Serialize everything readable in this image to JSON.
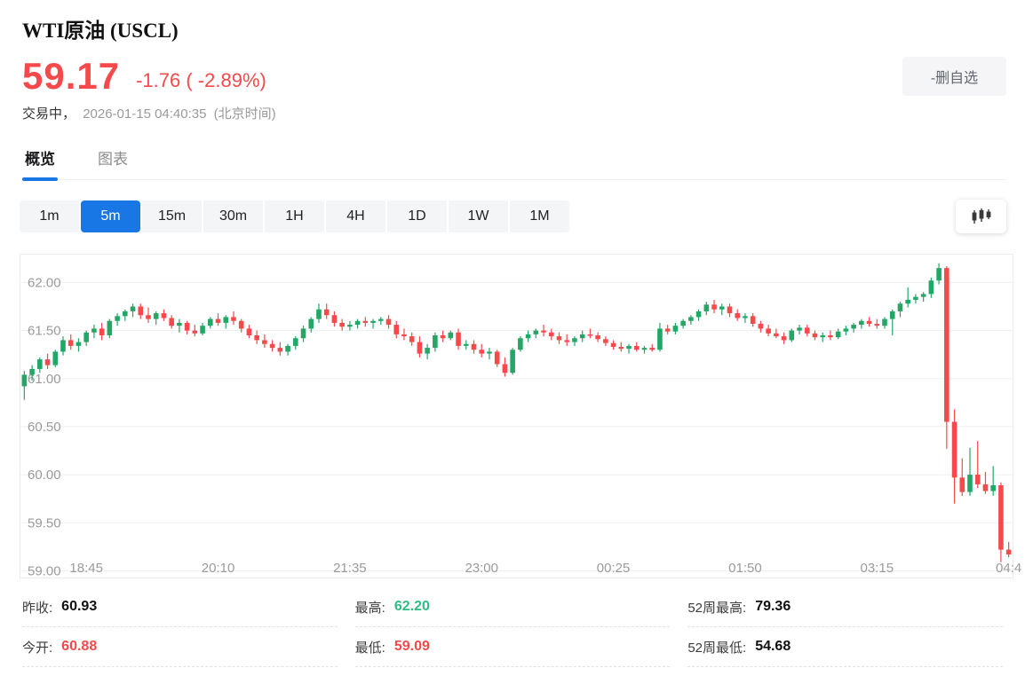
{
  "header": {
    "title": "WTI原油 (USCL)",
    "price": "59.17",
    "change": "-1.76 ( -2.89%)",
    "status": "交易中，",
    "datetime": "2026-01-15 04:40:35",
    "timezone": "(北京时间)",
    "remove_watchlist_label": "-删自选"
  },
  "tabs": [
    {
      "id": "overview",
      "label": "概览",
      "active": true
    },
    {
      "id": "chart",
      "label": "图表",
      "active": false
    }
  ],
  "timeframes": [
    {
      "label": "1m",
      "active": false
    },
    {
      "label": "5m",
      "active": true
    },
    {
      "label": "15m",
      "active": false
    },
    {
      "label": "30m",
      "active": false
    },
    {
      "label": "1H",
      "active": false
    },
    {
      "label": "4H",
      "active": false
    },
    {
      "label": "1D",
      "active": false
    },
    {
      "label": "1W",
      "active": false
    },
    {
      "label": "1M",
      "active": false
    }
  ],
  "colors": {
    "accent": "#1977e5",
    "up": "#22a767",
    "down": "#f5494b",
    "up_text": "#2ebd85",
    "grid": "#efefef",
    "axis_text": "#9b9b9b"
  },
  "chart_data": {
    "type": "candlestick",
    "interval": "5m",
    "ylim": [
      58.93,
      62.29
    ],
    "y_ticks": [
      {
        "label": "62.00",
        "value": 62.0
      },
      {
        "label": "61.50",
        "value": 61.5
      },
      {
        "label": "61.00",
        "value": 61.0
      },
      {
        "label": "60.50",
        "value": 60.5
      },
      {
        "label": "60.00",
        "value": 60.0
      },
      {
        "label": "59.50",
        "value": 59.5
      },
      {
        "label": "59.00",
        "value": 59.0
      }
    ],
    "x_ticks": [
      {
        "label": "18:45",
        "index": 8
      },
      {
        "label": "20:10",
        "index": 25
      },
      {
        "label": "21:35",
        "index": 42
      },
      {
        "label": "23:00",
        "index": 59
      },
      {
        "label": "00:25",
        "index": 76
      },
      {
        "label": "01:50",
        "index": 93
      },
      {
        "label": "03:15",
        "index": 110
      },
      {
        "label": "04:4",
        "index": 127
      }
    ],
    "candles": [
      [
        60.92,
        61.08,
        60.78,
        61.04
      ],
      [
        61.04,
        61.14,
        60.98,
        61.1
      ],
      [
        61.1,
        61.22,
        61.06,
        61.2
      ],
      [
        61.2,
        61.26,
        61.1,
        61.14
      ],
      [
        61.14,
        61.3,
        61.12,
        61.28
      ],
      [
        61.28,
        61.44,
        61.24,
        61.4
      ],
      [
        61.4,
        61.46,
        61.3,
        61.34
      ],
      [
        61.34,
        61.42,
        61.28,
        61.38
      ],
      [
        61.38,
        61.5,
        61.34,
        61.48
      ],
      [
        61.48,
        61.56,
        61.42,
        61.52
      ],
      [
        61.52,
        61.58,
        61.4,
        61.45
      ],
      [
        61.45,
        61.62,
        61.42,
        61.6
      ],
      [
        61.6,
        61.68,
        61.55,
        61.65
      ],
      [
        61.65,
        61.72,
        61.6,
        61.7
      ],
      [
        61.7,
        61.78,
        61.64,
        61.75
      ],
      [
        61.75,
        61.78,
        61.62,
        61.66
      ],
      [
        61.66,
        61.74,
        61.58,
        61.62
      ],
      [
        61.62,
        61.7,
        61.56,
        61.68
      ],
      [
        61.68,
        61.72,
        61.6,
        61.63
      ],
      [
        61.63,
        61.66,
        61.52,
        61.55
      ],
      [
        61.55,
        61.62,
        61.48,
        61.58
      ],
      [
        61.58,
        61.6,
        61.46,
        61.5
      ],
      [
        61.5,
        61.56,
        61.44,
        61.47
      ],
      [
        61.47,
        61.58,
        61.45,
        61.55
      ],
      [
        61.55,
        61.64,
        61.52,
        61.62
      ],
      [
        61.62,
        61.68,
        61.55,
        61.58
      ],
      [
        61.58,
        61.66,
        61.52,
        61.64
      ],
      [
        61.64,
        61.7,
        61.56,
        61.6
      ],
      [
        61.6,
        61.62,
        61.48,
        61.52
      ],
      [
        61.52,
        61.56,
        61.42,
        61.45
      ],
      [
        61.45,
        61.5,
        61.36,
        61.4
      ],
      [
        61.4,
        61.46,
        61.32,
        61.36
      ],
      [
        61.36,
        61.4,
        61.28,
        61.32
      ],
      [
        61.32,
        61.38,
        61.24,
        61.28
      ],
      [
        61.28,
        61.36,
        61.24,
        61.34
      ],
      [
        61.34,
        61.44,
        61.3,
        61.42
      ],
      [
        61.42,
        61.55,
        61.38,
        61.52
      ],
      [
        61.52,
        61.64,
        61.48,
        61.62
      ],
      [
        61.62,
        61.78,
        61.58,
        61.72
      ],
      [
        61.72,
        61.78,
        61.62,
        61.66
      ],
      [
        61.66,
        61.7,
        61.54,
        61.58
      ],
      [
        61.58,
        61.62,
        61.5,
        61.54
      ],
      [
        61.54,
        61.6,
        61.5,
        61.56
      ],
      [
        61.56,
        61.62,
        61.52,
        61.6
      ],
      [
        61.6,
        61.64,
        61.54,
        61.58
      ],
      [
        61.58,
        61.62,
        61.52,
        61.6
      ],
      [
        61.6,
        61.64,
        61.56,
        61.62
      ],
      [
        61.62,
        61.66,
        61.52,
        61.56
      ],
      [
        61.56,
        61.6,
        61.42,
        61.46
      ],
      [
        61.46,
        61.52,
        61.4,
        61.44
      ],
      [
        61.44,
        61.48,
        61.34,
        61.38
      ],
      [
        61.38,
        61.44,
        61.22,
        61.26
      ],
      [
        61.26,
        61.36,
        61.2,
        61.32
      ],
      [
        61.32,
        61.48,
        61.28,
        61.45
      ],
      [
        61.45,
        61.5,
        61.38,
        61.42
      ],
      [
        61.42,
        61.5,
        61.4,
        61.48
      ],
      [
        61.48,
        61.52,
        61.3,
        61.34
      ],
      [
        61.34,
        61.4,
        61.3,
        61.36
      ],
      [
        61.36,
        61.4,
        61.26,
        61.3
      ],
      [
        61.3,
        61.36,
        61.22,
        61.26
      ],
      [
        61.26,
        61.32,
        61.2,
        61.28
      ],
      [
        61.28,
        61.3,
        61.12,
        61.15
      ],
      [
        61.15,
        61.22,
        61.02,
        61.06
      ],
      [
        61.06,
        61.32,
        61.04,
        61.3
      ],
      [
        61.3,
        61.44,
        61.28,
        61.42
      ],
      [
        61.42,
        61.5,
        61.38,
        61.46
      ],
      [
        61.46,
        61.52,
        61.42,
        61.5
      ],
      [
        61.5,
        61.56,
        61.44,
        61.48
      ],
      [
        61.48,
        61.52,
        61.4,
        61.44
      ],
      [
        61.44,
        61.48,
        61.36,
        61.4
      ],
      [
        61.4,
        61.46,
        61.34,
        61.38
      ],
      [
        61.38,
        61.44,
        61.34,
        61.42
      ],
      [
        61.42,
        61.5,
        61.38,
        61.46
      ],
      [
        61.46,
        61.52,
        61.42,
        61.45
      ],
      [
        61.45,
        61.48,
        61.38,
        61.41
      ],
      [
        61.41,
        61.44,
        61.34,
        61.37
      ],
      [
        61.37,
        61.4,
        61.3,
        61.33
      ],
      [
        61.33,
        61.38,
        61.28,
        61.31
      ],
      [
        61.31,
        61.36,
        61.26,
        61.34
      ],
      [
        61.34,
        61.38,
        61.28,
        61.3
      ],
      [
        61.3,
        61.34,
        61.26,
        61.32
      ],
      [
        61.32,
        61.36,
        61.28,
        61.3
      ],
      [
        61.3,
        61.58,
        61.28,
        61.52
      ],
      [
        61.52,
        61.56,
        61.46,
        61.49
      ],
      [
        61.49,
        61.58,
        61.46,
        61.55
      ],
      [
        61.55,
        61.62,
        61.52,
        61.6
      ],
      [
        61.6,
        61.66,
        61.56,
        61.64
      ],
      [
        61.64,
        61.72,
        61.6,
        61.7
      ],
      [
        61.7,
        61.8,
        61.66,
        61.77
      ],
      [
        61.77,
        61.82,
        61.68,
        61.72
      ],
      [
        61.72,
        61.78,
        61.66,
        61.75
      ],
      [
        61.75,
        61.78,
        61.64,
        61.68
      ],
      [
        61.68,
        61.72,
        61.6,
        61.63
      ],
      [
        61.63,
        61.68,
        61.58,
        61.65
      ],
      [
        61.65,
        61.68,
        61.54,
        61.57
      ],
      [
        61.57,
        61.6,
        61.48,
        61.52
      ],
      [
        61.52,
        61.56,
        61.44,
        61.47
      ],
      [
        61.47,
        61.52,
        61.42,
        61.44
      ],
      [
        61.44,
        61.48,
        61.36,
        61.4
      ],
      [
        61.4,
        61.52,
        61.38,
        61.5
      ],
      [
        61.5,
        61.56,
        61.46,
        61.53
      ],
      [
        61.53,
        61.56,
        61.44,
        61.47
      ],
      [
        61.47,
        61.5,
        61.4,
        61.43
      ],
      [
        61.43,
        61.48,
        61.38,
        61.45
      ],
      [
        61.45,
        61.5,
        61.4,
        61.43
      ],
      [
        61.43,
        61.52,
        61.41,
        61.49
      ],
      [
        61.49,
        61.55,
        61.45,
        61.52
      ],
      [
        61.52,
        61.58,
        61.48,
        61.56
      ],
      [
        61.56,
        61.62,
        61.52,
        61.6
      ],
      [
        61.6,
        61.64,
        61.54,
        61.57
      ],
      [
        61.57,
        61.62,
        61.52,
        61.55
      ],
      [
        61.55,
        61.64,
        61.52,
        61.62
      ],
      [
        61.62,
        61.72,
        61.45,
        61.7
      ],
      [
        61.7,
        61.8,
        61.64,
        61.78
      ],
      [
        61.78,
        61.95,
        61.74,
        61.82
      ],
      [
        61.82,
        61.88,
        61.78,
        61.85
      ],
      [
        61.85,
        61.9,
        61.8,
        61.88
      ],
      [
        61.88,
        62.05,
        61.84,
        62.02
      ],
      [
        62.02,
        62.2,
        61.98,
        62.15
      ],
      [
        62.15,
        62.17,
        60.27,
        60.55
      ],
      [
        60.55,
        60.68,
        59.7,
        59.97
      ],
      [
        59.97,
        60.17,
        59.78,
        59.82
      ],
      [
        59.82,
        60.28,
        59.78,
        60.0
      ],
      [
        60.0,
        60.35,
        59.86,
        59.9
      ],
      [
        59.9,
        60.03,
        59.8,
        59.83
      ],
      [
        59.83,
        60.09,
        59.78,
        59.89
      ],
      [
        59.89,
        59.92,
        59.09,
        59.22
      ],
      [
        59.22,
        59.3,
        59.14,
        59.17
      ]
    ]
  },
  "stats": {
    "columns": [
      [
        {
          "id": "prev-close",
          "label": "昨收:",
          "value": "60.93",
          "color": "#111111"
        },
        {
          "id": "open",
          "label": "今开:",
          "value": "60.88",
          "color": "#f5494b"
        }
      ],
      [
        {
          "id": "high",
          "label": "最高:",
          "value": "62.20",
          "color": "#2ebd85"
        },
        {
          "id": "low",
          "label": "最低:",
          "value": "59.09",
          "color": "#f5494b"
        }
      ],
      [
        {
          "id": "52w-high",
          "label": "52周最高:",
          "value": "79.36",
          "color": "#111111"
        },
        {
          "id": "52w-low",
          "label": "52周最低:",
          "value": "54.68",
          "color": "#111111"
        }
      ]
    ]
  }
}
